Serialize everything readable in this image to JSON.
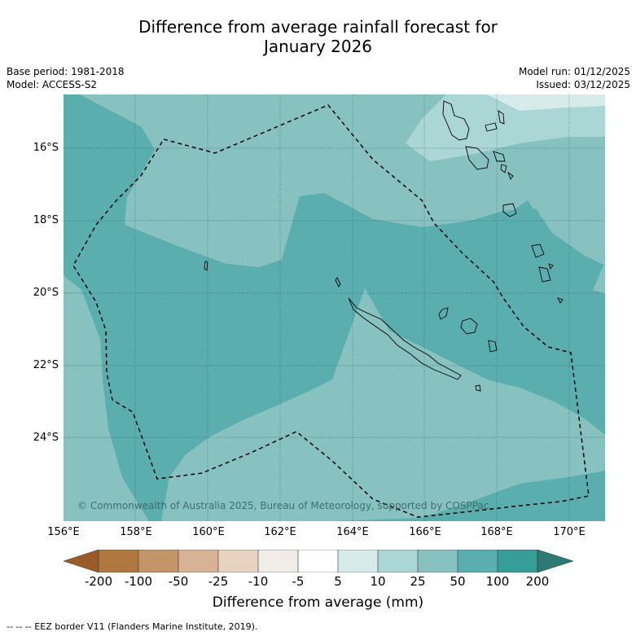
{
  "title": {
    "line1": "Difference from average rainfall forecast for",
    "line2": "January 2026"
  },
  "meta": {
    "base_period": "Base period: 1981-2018",
    "model": "Model: ACCESS-S2",
    "model_run": "Model run: 01/12/2025",
    "issued": "Issued: 03/12/2025"
  },
  "axes": {
    "lat_labels": [
      "16°S",
      "18°S",
      "20°S",
      "22°S",
      "24°S"
    ],
    "lon_labels": [
      "156°E",
      "158°E",
      "160°E",
      "162°E",
      "164°E",
      "166°E",
      "168°E",
      "170°E"
    ]
  },
  "map": {
    "credit": "© Commonwealth of Australia 2025, Bureau of Meteorology, supported by COSPPac",
    "colors": {
      "band_5_10": "#d6ebea",
      "band_10_25": "#aad6d5",
      "band_25_50": "#87c1c0",
      "band_50_100": "#5aaeae",
      "border": "#000000"
    }
  },
  "colorbar": {
    "title": "Difference from average (mm)",
    "tick_labels": [
      "-200",
      "-100",
      "-50",
      "-25",
      "-10",
      "-5",
      "5",
      "10",
      "25",
      "50",
      "100",
      "200"
    ],
    "colors": [
      "#9a5c26",
      "#b07840",
      "#c5956a",
      "#d7b294",
      "#e8d3c1",
      "#f0ece8",
      "#ffffff",
      "#d6ebea",
      "#aad6d5",
      "#87c1c0",
      "#5aaeae",
      "#369d97",
      "#2b7a74"
    ]
  },
  "footnote": "--  --  -- EEZ border V11 (Flanders Marine Institute, 2019)."
}
